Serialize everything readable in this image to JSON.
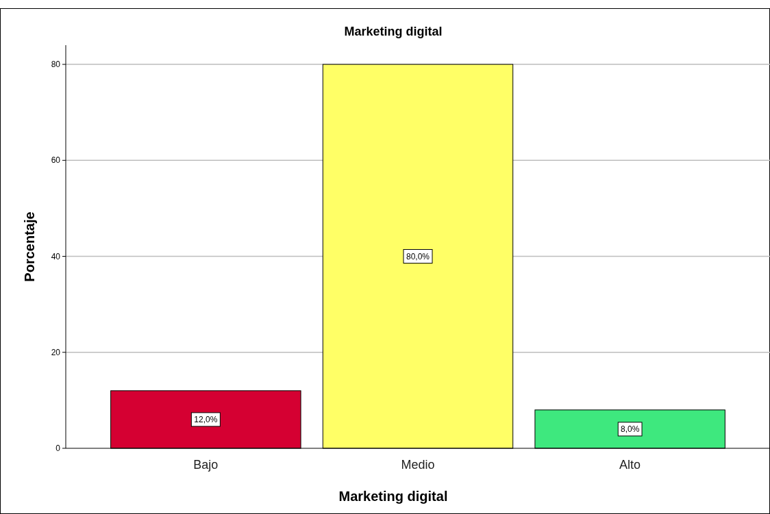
{
  "chart_data": {
    "type": "bar",
    "title": "Marketing digital",
    "xlabel": "Marketing digital",
    "ylabel": "Porcentaje",
    "categories": [
      "Bajo",
      "Medio",
      "Alto"
    ],
    "values": [
      12,
      80,
      8
    ],
    "colors": [
      "#d50032",
      "#ffff66",
      "#3ee87e"
    ],
    "value_labels": [
      "12,0%",
      "80,0%",
      "8,0%"
    ],
    "ylim": [
      0,
      84
    ],
    "yticks": [
      0,
      20,
      40,
      60,
      80
    ],
    "grid": "y"
  }
}
